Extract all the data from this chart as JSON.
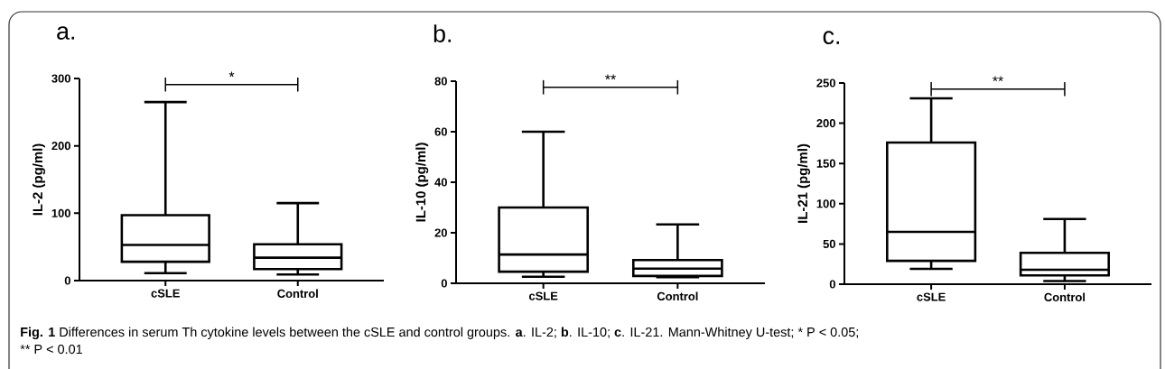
{
  "chart_data": [
    {
      "type": "box",
      "title": "a.",
      "ylabel": "IL-2 (pg/ml)",
      "categories": [
        "cSLE",
        "Control"
      ],
      "ylim": [
        0,
        300
      ],
      "yticks": [
        0,
        100,
        200,
        300
      ],
      "series": [
        {
          "color": "#000000",
          "boxes": [
            {
              "low": 11,
              "q1": 28,
              "median": 53,
              "q3": 97,
              "high": 265
            },
            {
              "low": 9,
              "q1": 17,
              "median": 34,
              "q3": 54,
              "high": 115
            }
          ]
        }
      ],
      "annotations": [
        "*",
        "Fig. 1",
        "Differences in serum Th cytokine levels between the cSLE and control groups. **a**. IL-2; **b**. IL-10; **c**. IL-21. Mann-Whitney U-test;",
        "* P < 0.05;",
        "** P < 0.01"
      ]
    },
    {
      "type": "box",
      "title": "b.",
      "ylabel": "IL-10 (pg/ml)",
      "categories": [
        "cSLE",
        "Control"
      ],
      "ylim": [
        0,
        80
      ],
      "yticks": [
        0,
        20,
        40,
        60,
        80
      ],
      "series": [
        {
          "color": "#000000",
          "boxes": [
            {
              "low": 2.6,
              "q1": 4.6,
              "median": 11.4,
              "q3": 30,
              "high": 60
            },
            {
              "low": 2.4,
              "q1": 2.9,
              "median": 5.8,
              "q3": 9.2,
              "high": 23.3
            }
          ]
        }
      ],
      "annotations": [
        "**"
      ]
    },
    {
      "type": "box",
      "title": "c.",
      "ylabel": "IL-21 (pg/ml)",
      "categories": [
        "cSLE",
        "Control"
      ],
      "ylim": [
        0,
        250
      ],
      "yticks": [
        0,
        50,
        100,
        150,
        200,
        250
      ],
      "series": [
        {
          "color": "#000000",
          "boxes": [
            {
              "low": 19,
              "q1": 29,
              "median": 65,
              "q3": 176,
              "high": 231
            },
            {
              "low": 4,
              "q1": 11,
              "median": 18,
              "q3": 39,
              "high": 81
            }
          ]
        }
      ],
      "annotations": [
        "**"
      ]
    }
  ]
}
